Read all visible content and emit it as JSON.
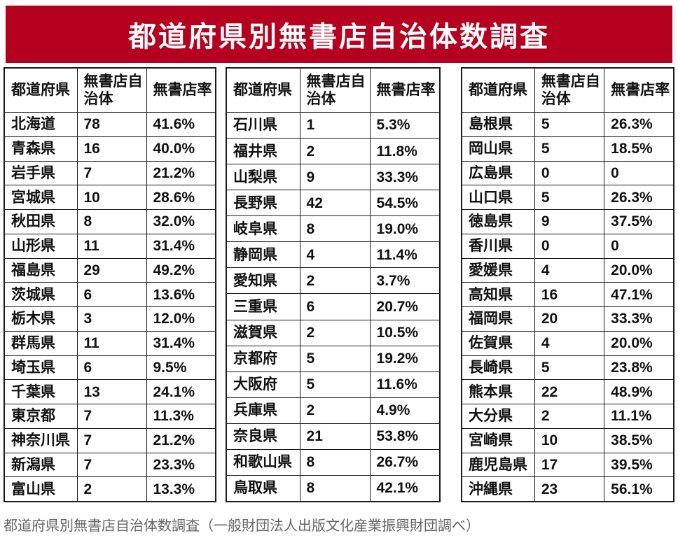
{
  "title": "都道府県別無書店自治体数調査",
  "caption": "都道府県別無書店自治体数調査（一般財団法人出版文化産業振興財団調べ）",
  "columns": [
    "都道府県",
    "無書店自治体",
    "無書店率"
  ],
  "colors": {
    "banner": "#B5011F",
    "border": "#1a1a1a",
    "text": "#111111",
    "caption": "#666666",
    "title_text": "#ffffff"
  },
  "tables": [
    {
      "rows": [
        [
          "北海道",
          "78",
          "41.6%"
        ],
        [
          "青森県",
          "16",
          "40.0%"
        ],
        [
          "岩手県",
          "7",
          "21.2%"
        ],
        [
          "宮城県",
          "10",
          "28.6%"
        ],
        [
          "秋田県",
          "8",
          "32.0%"
        ],
        [
          "山形県",
          "11",
          "31.4%"
        ],
        [
          "福島県",
          "29",
          "49.2%"
        ],
        [
          "茨城県",
          "6",
          "13.6%"
        ],
        [
          "栃木県",
          "3",
          "12.0%"
        ],
        [
          "群馬県",
          "11",
          "31.4%"
        ],
        [
          "埼玉県",
          "6",
          "9.5%"
        ],
        [
          "千葉県",
          "13",
          "24.1%"
        ],
        [
          "東京都",
          "7",
          "11.3%"
        ],
        [
          "神奈川県",
          "7",
          "21.2%"
        ],
        [
          "新潟県",
          "7",
          "23.3%"
        ],
        [
          "富山県",
          "2",
          "13.3%"
        ]
      ]
    },
    {
      "rows": [
        [
          "石川県",
          "1",
          "5.3%"
        ],
        [
          "福井県",
          "2",
          "11.8%"
        ],
        [
          "山梨県",
          "9",
          "33.3%"
        ],
        [
          "長野県",
          "42",
          "54.5%"
        ],
        [
          "岐阜県",
          "8",
          "19.0%"
        ],
        [
          "静岡県",
          "4",
          "11.4%"
        ],
        [
          "愛知県",
          "2",
          "3.7%"
        ],
        [
          "三重県",
          "6",
          "20.7%"
        ],
        [
          "滋賀県",
          "2",
          "10.5%"
        ],
        [
          "京都府",
          "5",
          "19.2%"
        ],
        [
          "大阪府",
          "5",
          "11.6%"
        ],
        [
          "兵庫県",
          "2",
          "4.9%"
        ],
        [
          "奈良県",
          "21",
          "53.8%"
        ],
        [
          "和歌山県",
          "8",
          "26.7%"
        ],
        [
          "鳥取県",
          "8",
          "42.1%"
        ]
      ]
    },
    {
      "rows": [
        [
          "島根県",
          "5",
          "26.3%"
        ],
        [
          "岡山県",
          "5",
          "18.5%"
        ],
        [
          "広島県",
          "0",
          "0"
        ],
        [
          "山口県",
          "5",
          "26.3%"
        ],
        [
          "徳島県",
          "9",
          "37.5%"
        ],
        [
          "香川県",
          "0",
          "0"
        ],
        [
          "愛媛県",
          "4",
          "20.0%"
        ],
        [
          "高知県",
          "16",
          "47.1%"
        ],
        [
          "福岡県",
          "20",
          "33.3%"
        ],
        [
          "佐賀県",
          "4",
          "20.0%"
        ],
        [
          "長崎県",
          "5",
          "23.8%"
        ],
        [
          "熊本県",
          "22",
          "48.9%"
        ],
        [
          "大分県",
          "2",
          "11.1%"
        ],
        [
          "宮崎県",
          "10",
          "38.5%"
        ],
        [
          "鹿児島県",
          "17",
          "39.5%"
        ],
        [
          "沖縄県",
          "23",
          "56.1%"
        ]
      ]
    }
  ],
  "chart_data": {
    "type": "table",
    "title": "都道府県別無書店自治体数調査",
    "columns": [
      "都道府県",
      "無書店自治体",
      "無書店率"
    ],
    "rows": [
      [
        "北海道",
        78,
        "41.6%"
      ],
      [
        "青森県",
        16,
        "40.0%"
      ],
      [
        "岩手県",
        7,
        "21.2%"
      ],
      [
        "宮城県",
        10,
        "28.6%"
      ],
      [
        "秋田県",
        8,
        "32.0%"
      ],
      [
        "山形県",
        11,
        "31.4%"
      ],
      [
        "福島県",
        29,
        "49.2%"
      ],
      [
        "茨城県",
        6,
        "13.6%"
      ],
      [
        "栃木県",
        3,
        "12.0%"
      ],
      [
        "群馬県",
        11,
        "31.4%"
      ],
      [
        "埼玉県",
        6,
        "9.5%"
      ],
      [
        "千葉県",
        13,
        "24.1%"
      ],
      [
        "東京都",
        7,
        "11.3%"
      ],
      [
        "神奈川県",
        7,
        "21.2%"
      ],
      [
        "新潟県",
        7,
        "23.3%"
      ],
      [
        "富山県",
        2,
        "13.3%"
      ],
      [
        "石川県",
        1,
        "5.3%"
      ],
      [
        "福井県",
        2,
        "11.8%"
      ],
      [
        "山梨県",
        9,
        "33.3%"
      ],
      [
        "長野県",
        42,
        "54.5%"
      ],
      [
        "岐阜県",
        8,
        "19.0%"
      ],
      [
        "静岡県",
        4,
        "11.4%"
      ],
      [
        "愛知県",
        2,
        "3.7%"
      ],
      [
        "三重県",
        6,
        "20.7%"
      ],
      [
        "滋賀県",
        2,
        "10.5%"
      ],
      [
        "京都府",
        5,
        "19.2%"
      ],
      [
        "大阪府",
        5,
        "11.6%"
      ],
      [
        "兵庫県",
        2,
        "4.9%"
      ],
      [
        "奈良県",
        21,
        "53.8%"
      ],
      [
        "和歌山県",
        8,
        "26.7%"
      ],
      [
        "鳥取県",
        8,
        "42.1%"
      ],
      [
        "島根県",
        5,
        "26.3%"
      ],
      [
        "岡山県",
        5,
        "18.5%"
      ],
      [
        "広島県",
        0,
        "0"
      ],
      [
        "山口県",
        5,
        "26.3%"
      ],
      [
        "徳島県",
        9,
        "37.5%"
      ],
      [
        "香川県",
        0,
        "0"
      ],
      [
        "愛媛県",
        4,
        "20.0%"
      ],
      [
        "高知県",
        16,
        "47.1%"
      ],
      [
        "福岡県",
        20,
        "33.3%"
      ],
      [
        "佐賀県",
        4,
        "20.0%"
      ],
      [
        "長崎県",
        5,
        "23.8%"
      ],
      [
        "熊本県",
        22,
        "48.9%"
      ],
      [
        "大分県",
        2,
        "11.1%"
      ],
      [
        "宮崎県",
        10,
        "38.5%"
      ],
      [
        "鹿児島県",
        17,
        "39.5%"
      ],
      [
        "沖縄県",
        23,
        "56.1%"
      ]
    ],
    "note": "都道府県別無書店自治体数調査（一般財団法人出版文化産業振興財団調べ）"
  }
}
